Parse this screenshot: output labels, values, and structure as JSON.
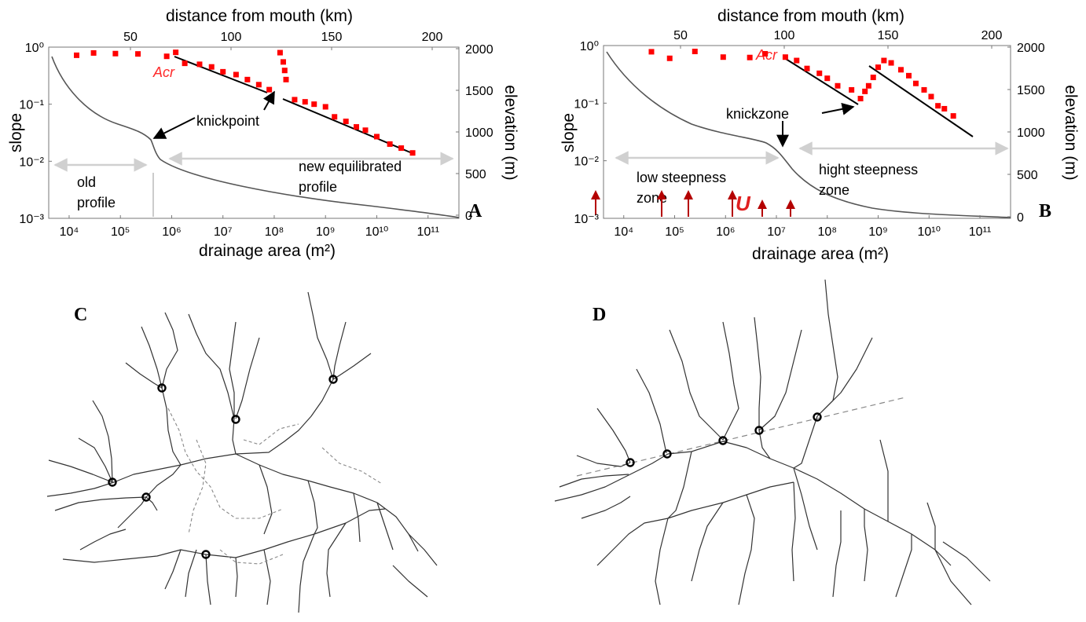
{
  "panels": {
    "A": "A",
    "B": "B",
    "C": "C",
    "D": "D"
  },
  "colors": {
    "data_points": "#ff0000",
    "uplift_arrows": "#b40000",
    "range_arrows": "#d0d0d0",
    "profile_curve": "#555555",
    "streams": "#333333"
  },
  "chart_data": [
    {
      "type": "scatter",
      "panel": "A",
      "xlabel": "drainage area (m²)",
      "ylabel": "slope",
      "x2label": "distance from mouth (km)",
      "y2label": "elevation (m)",
      "x_scale": "log",
      "y_scale": "log",
      "xlim": [
        4000,
        400000000000
      ],
      "ylim": [
        0.001,
        1
      ],
      "x_ticks": [
        "10⁴",
        "10⁵",
        "10⁶",
        "10⁷",
        "10⁸",
        "10⁹",
        "10¹⁰",
        "10¹¹"
      ],
      "y_ticks": [
        "10⁰",
        "10⁻¹",
        "10⁻²",
        "10⁻³"
      ],
      "x2_ticks": [
        "50",
        "100",
        "150",
        "200"
      ],
      "y2_ticks": [
        "2000",
        "1500",
        "1000",
        "500",
        "0"
      ],
      "acr_label": "Acr",
      "annotations": [
        "knickpoint",
        "old profile",
        "new equilibrated profile"
      ],
      "points": [
        [
          14000.0,
          0.72
        ],
        [
          30000.0,
          0.79
        ],
        [
          80000.0,
          0.77
        ],
        [
          220000.0,
          0.76
        ],
        [
          800000.0,
          0.69
        ],
        [
          1200000.0,
          0.81
        ],
        [
          1800000.0,
          0.52
        ],
        [
          3500000.0,
          0.5
        ],
        [
          6000000.0,
          0.45
        ],
        [
          10000000.0,
          0.37
        ],
        [
          18000000.0,
          0.33
        ],
        [
          30000000.0,
          0.27
        ],
        [
          50000000.0,
          0.22
        ],
        [
          80000000.0,
          0.18
        ],
        [
          130000000.0,
          0.8
        ],
        [
          150000000.0,
          0.55
        ],
        [
          160000000.0,
          0.39
        ],
        [
          170000000.0,
          0.27
        ],
        [
          250000000.0,
          0.12
        ],
        [
          400000000.0,
          0.11
        ],
        [
          600000000.0,
          0.1
        ],
        [
          1000000000.0,
          0.09
        ],
        [
          1500000000.0,
          0.06
        ],
        [
          2500000000.0,
          0.05
        ],
        [
          4000000000.0,
          0.04
        ],
        [
          6000000000.0,
          0.035
        ],
        [
          10000000000.0,
          0.027
        ],
        [
          18000000000.0,
          0.02
        ],
        [
          30000000000.0,
          0.017
        ],
        [
          50000000000.0,
          0.014
        ]
      ]
    },
    {
      "type": "scatter",
      "panel": "B",
      "xlabel": "drainage area (m²)",
      "ylabel": "slope",
      "x2label": "distance from mouth (km)",
      "y2label": "elevation (m)",
      "x_scale": "log",
      "y_scale": "log",
      "xlim": [
        4000,
        400000000000
      ],
      "ylim": [
        0.001,
        1
      ],
      "x_ticks": [
        "10⁴",
        "10⁵",
        "10⁶",
        "10⁷",
        "10⁸",
        "10⁹",
        "10¹⁰",
        "10¹¹"
      ],
      "y_ticks": [
        "10⁰",
        "10⁻¹",
        "10⁻²",
        "10⁻³"
      ],
      "x2_ticks": [
        "50",
        "100",
        "150",
        "200"
      ],
      "y2_ticks": [
        "2000",
        "1500",
        "1000",
        "500",
        "0"
      ],
      "acr_label": "Acr",
      "uplift_label": "U",
      "annotations": [
        "knickzone",
        "low steepness zone",
        "hight steepness zone"
      ],
      "points": [
        [
          35000.0,
          0.78
        ],
        [
          80000.0,
          0.6
        ],
        [
          250000.0,
          0.79
        ],
        [
          900000.0,
          0.63
        ],
        [
          3000000.0,
          0.62
        ],
        [
          6000000.0,
          0.72
        ],
        [
          15000000.0,
          0.63
        ],
        [
          25000000.0,
          0.55
        ],
        [
          40000000.0,
          0.4
        ],
        [
          70000000.0,
          0.33
        ],
        [
          100000000.0,
          0.27
        ],
        [
          160000000.0,
          0.2
        ],
        [
          300000000.0,
          0.17
        ],
        [
          450000000.0,
          0.12
        ],
        [
          550000000.0,
          0.16
        ],
        [
          650000000.0,
          0.2
        ],
        [
          800000000.0,
          0.28
        ],
        [
          1000000000.0,
          0.42
        ],
        [
          1300000000.0,
          0.55
        ],
        [
          1800000000.0,
          0.5
        ],
        [
          2800000000.0,
          0.38
        ],
        [
          4000000000.0,
          0.3
        ],
        [
          5500000000.0,
          0.22
        ],
        [
          8000000000.0,
          0.17
        ],
        [
          11000000000.0,
          0.13
        ],
        [
          15000000000.0,
          0.09
        ],
        [
          20000000000.0,
          0.08
        ],
        [
          30000000000.0,
          0.06
        ]
      ]
    }
  ]
}
